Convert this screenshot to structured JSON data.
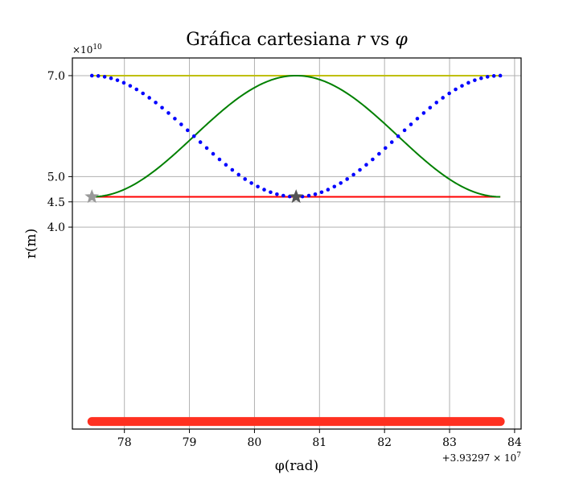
{
  "chart_data": {
    "type": "line",
    "title": "Gráfica cartesiana r vs φ",
    "title_parts": [
      {
        "text": "Gráfica cartesiana ",
        "italic": false
      },
      {
        "text": "r",
        "italic": true
      },
      {
        "text": " vs ",
        "italic": false
      },
      {
        "text": "φ",
        "italic": true
      }
    ],
    "xlabel": "φ(rad)",
    "ylabel": "r(m)",
    "x_offset_text": "+3.93297 × 10",
    "x_offset_exp": "7",
    "y_scale_text": "×10",
    "y_scale_exp": "10",
    "xlim": [
      77.2,
      84.1
    ],
    "ylim": [
      0.0,
      7.35
    ],
    "x_ticks": [
      78,
      79,
      80,
      81,
      82,
      83,
      84
    ],
    "y_ticks": [
      {
        "value": 4.0,
        "label": "4.0"
      },
      {
        "value": 4.5,
        "label": "4.5"
      },
      {
        "value": 5.0,
        "label": "5.0"
      },
      {
        "value": 7.0,
        "label": "7.0"
      }
    ],
    "grid": true,
    "phi_range": [
      77.5,
      83.78
    ],
    "r_max": 7.0,
    "r_min": 4.6,
    "series": [
      {
        "id": "max-line",
        "style": "line",
        "color": "#bfbf00",
        "constant": 7.0
      },
      {
        "id": "min-line",
        "style": "line",
        "color": "#ff0000",
        "constant": 4.6
      },
      {
        "id": "green-curve",
        "style": "line",
        "color": "#008000",
        "shape": "cos-well"
      },
      {
        "id": "blue-dots",
        "style": "dots",
        "color": "#0000ff",
        "shape": "cos-hill"
      },
      {
        "id": "orange-band",
        "style": "band",
        "color": "#ff3020",
        "constant": 0.15
      }
    ],
    "markers": [
      {
        "id": "star-left",
        "x": 77.5,
        "y": 4.6,
        "color": "#999999"
      },
      {
        "id": "star-center",
        "x": 80.64,
        "y": 4.6,
        "color": "#555555"
      }
    ]
  }
}
